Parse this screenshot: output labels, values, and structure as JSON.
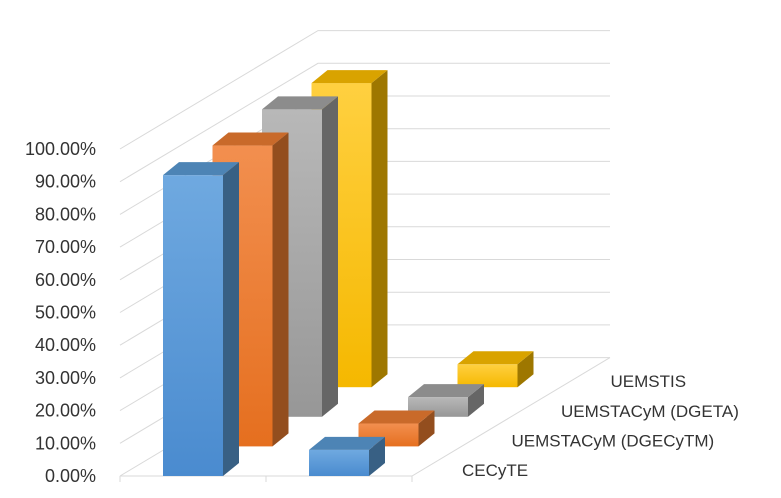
{
  "chart_data": {
    "type": "bar",
    "variant": "3d-column",
    "categories": [
      "",
      ""
    ],
    "series": [
      {
        "name": "CECyTE",
        "values": [
          92,
          8
        ],
        "color": "#5B9BD5"
      },
      {
        "name": "UEMSTACyM (DGECyTM)",
        "values": [
          92,
          7
        ],
        "color": "#ED7D31"
      },
      {
        "name": "UEMSTACyM (DGETA)",
        "values": [
          94,
          6
        ],
        "color": "#A5A5A5"
      },
      {
        "name": "UEMSTIS",
        "values": [
          93,
          7
        ],
        "color": "#FFC000"
      }
    ],
    "yticks": [
      "0.00%",
      "10.00%",
      "20.00%",
      "30.00%",
      "40.00%",
      "50.00%",
      "60.00%",
      "70.00%",
      "80.00%",
      "90.00%",
      "100.00%"
    ],
    "ylim": [
      0,
      100
    ],
    "grid": true,
    "title": "",
    "xlabel": "",
    "ylabel": ""
  }
}
